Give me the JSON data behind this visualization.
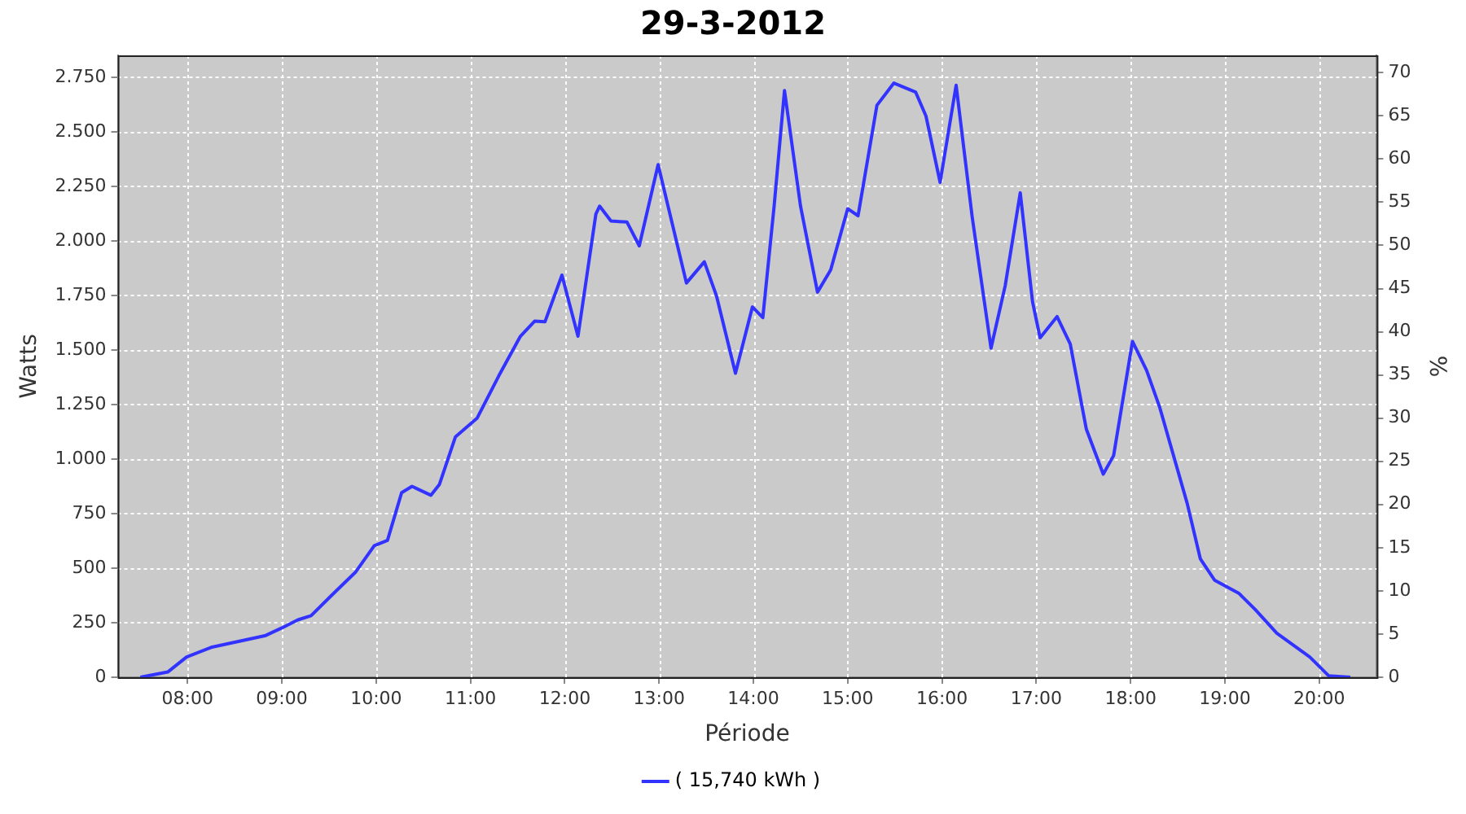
{
  "chart_data": {
    "type": "line",
    "title": "29-3-2012",
    "xlabel": "Période",
    "ylabel": "Watts",
    "y2label": "%",
    "x": [
      7.5,
      7.79,
      7.99,
      8.25,
      8.82,
      9.0,
      9.17,
      9.31,
      9.52,
      9.78,
      9.98,
      10.12,
      10.27,
      10.38,
      10.58,
      10.67,
      10.84,
      11.07,
      11.3,
      11.53,
      11.68,
      11.79,
      11.97,
      12.14,
      12.33,
      12.37,
      12.49,
      12.66,
      12.79,
      12.99,
      13.29,
      13.48,
      13.61,
      13.81,
      13.99,
      14.1,
      14.22,
      14.33,
      14.5,
      14.68,
      14.82,
      15.0,
      15.11,
      15.31,
      15.49,
      15.72,
      15.83,
      15.98,
      16.15,
      16.32,
      16.52,
      16.67,
      16.83,
      16.96,
      17.04,
      17.22,
      17.36,
      17.53,
      17.71,
      17.82,
      18.02,
      18.17,
      18.31,
      18.6,
      18.74,
      18.89,
      19.15,
      19.32,
      19.55,
      19.9,
      20.1,
      20.33
    ],
    "series": [
      {
        "name": "( 15,740 kWh )",
        "color": "#3333ff",
        "values": [
          0,
          24,
          93,
          137,
          190,
          226,
          263,
          282,
          372,
          481,
          603,
          627,
          846,
          875,
          834,
          883,
          1101,
          1187,
          1381,
          1563,
          1632,
          1629,
          1843,
          1563,
          2123,
          2159,
          2091,
          2086,
          1977,
          2349,
          1807,
          1904,
          1746,
          1393,
          1697,
          1648,
          2159,
          2689,
          2159,
          1765,
          1867,
          2147,
          2115,
          2621,
          2723,
          2682,
          2572,
          2268,
          2713,
          2110,
          1508,
          1794,
          2220,
          1721,
          1556,
          1653,
          1527,
          1138,
          931,
          1016,
          1539,
          1406,
          1235,
          797,
          542,
          445,
          384,
          311,
          202,
          93,
          7,
          0
        ]
      }
    ],
    "xlim": [
      7.26,
      20.61
    ],
    "xticks": [
      {
        "value": 8,
        "label": "08:00"
      },
      {
        "value": 9,
        "label": "09:00"
      },
      {
        "value": 10,
        "label": "10:00"
      },
      {
        "value": 11,
        "label": "11:00"
      },
      {
        "value": 12,
        "label": "12:00"
      },
      {
        "value": 13,
        "label": "13:00"
      },
      {
        "value": 14,
        "label": "14:00"
      },
      {
        "value": 15,
        "label": "15:00"
      },
      {
        "value": 16,
        "label": "16:00"
      },
      {
        "value": 17,
        "label": "17:00"
      },
      {
        "value": 18,
        "label": "18:00"
      },
      {
        "value": 19,
        "label": "19:00"
      },
      {
        "value": 20,
        "label": "20:00"
      }
    ],
    "ylim": [
      0,
      2850
    ],
    "yticks": [
      0,
      250,
      500,
      750,
      {
        "value": 1000,
        "label": "1.000"
      },
      {
        "value": 1250,
        "label": "1.250"
      },
      {
        "value": 1500,
        "label": "1.500"
      },
      {
        "value": 1750,
        "label": "1.750"
      },
      {
        "value": 2000,
        "label": "2.000"
      },
      {
        "value": 2250,
        "label": "2.250"
      },
      {
        "value": 2500,
        "label": "2.500"
      },
      {
        "value": 2750,
        "label": "2.750"
      }
    ],
    "y2lim": [
      0,
      72
    ],
    "y2ticks": [
      0,
      5,
      10,
      15,
      20,
      25,
      30,
      35,
      40,
      45,
      50,
      55,
      60,
      65,
      70
    ],
    "grid": true,
    "legend": "bottom",
    "marker": "none",
    "line_style": "solid"
  }
}
